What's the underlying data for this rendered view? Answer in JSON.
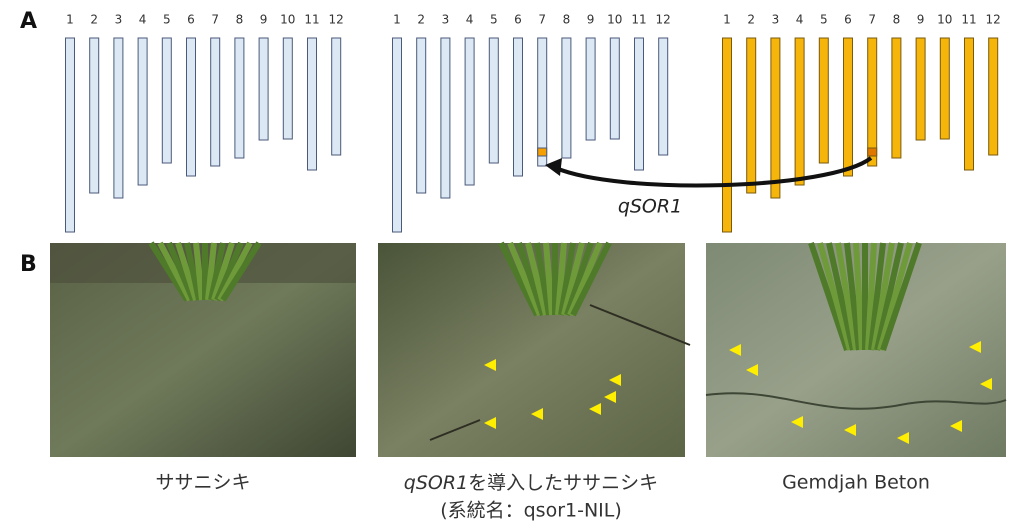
{
  "panel_a": {
    "label": "A",
    "chromosome_labels": [
      "1",
      "2",
      "3",
      "4",
      "5",
      "6",
      "7",
      "8",
      "9",
      "10",
      "11",
      "12"
    ],
    "gene": "qSOR1"
  },
  "panel_b": {
    "label": "B",
    "photos": [
      {
        "caption": "ササニシキ"
      },
      {
        "caption_gene": "qSOR1",
        "caption": "を導入したササニシキ",
        "caption_line2": "(系統名：qsor1-NIL)"
      },
      {
        "caption": "Gemdjah Beton"
      }
    ]
  }
}
